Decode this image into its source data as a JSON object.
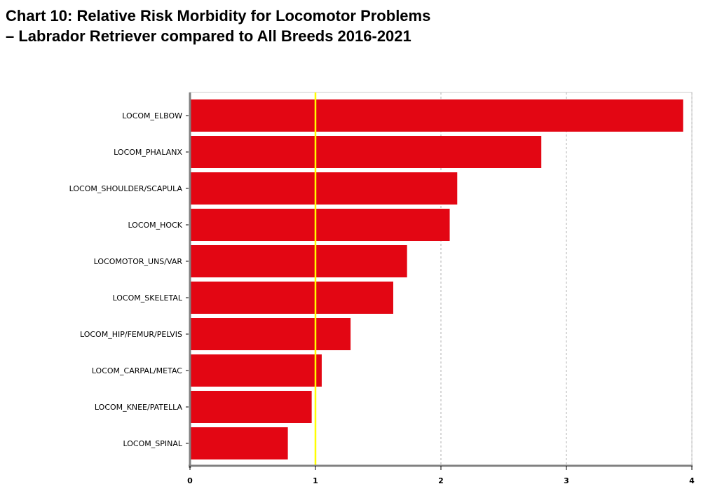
{
  "title_lines": [
    "Chart 10: Relative Risk Morbidity for Locomotor Problems",
    "–  Labrador Retriever compared to All Breeds 2016-2021"
  ],
  "colors": {
    "bar": "#e30613",
    "reference_line": "#ffff00",
    "grid": "#b0b0b0",
    "axis": "#808080"
  },
  "chart_data": {
    "type": "bar",
    "orientation": "horizontal",
    "title": "Chart 10: Relative Risk Morbidity for Locomotor Problems –  Labrador Retriever compared to All Breeds 2016-2021",
    "categories": [
      "LOCOM_ELBOW",
      "LOCOM_PHALANX",
      "LOCOM_SHOULDER/SCAPULA",
      "LOCOM_HOCK",
      "LOCOMOTOR_UNS/VAR",
      "LOCOM_SKELETAL",
      "LOCOM_HIP/FEMUR/PELVIS",
      "LOCOM_CARPAL/METAC",
      "LOCOM_KNEE/PATELLA",
      "LOCOM_SPINAL"
    ],
    "values": [
      3.93,
      2.8,
      2.13,
      2.07,
      1.73,
      1.62,
      1.28,
      1.05,
      0.97,
      0.78
    ],
    "xlim": [
      0,
      4
    ],
    "xticks": [
      "0",
      "1",
      "2",
      "3",
      "4"
    ],
    "reference_value": 1,
    "xlabel": "",
    "ylabel": "",
    "grid": "vertical dashed"
  }
}
